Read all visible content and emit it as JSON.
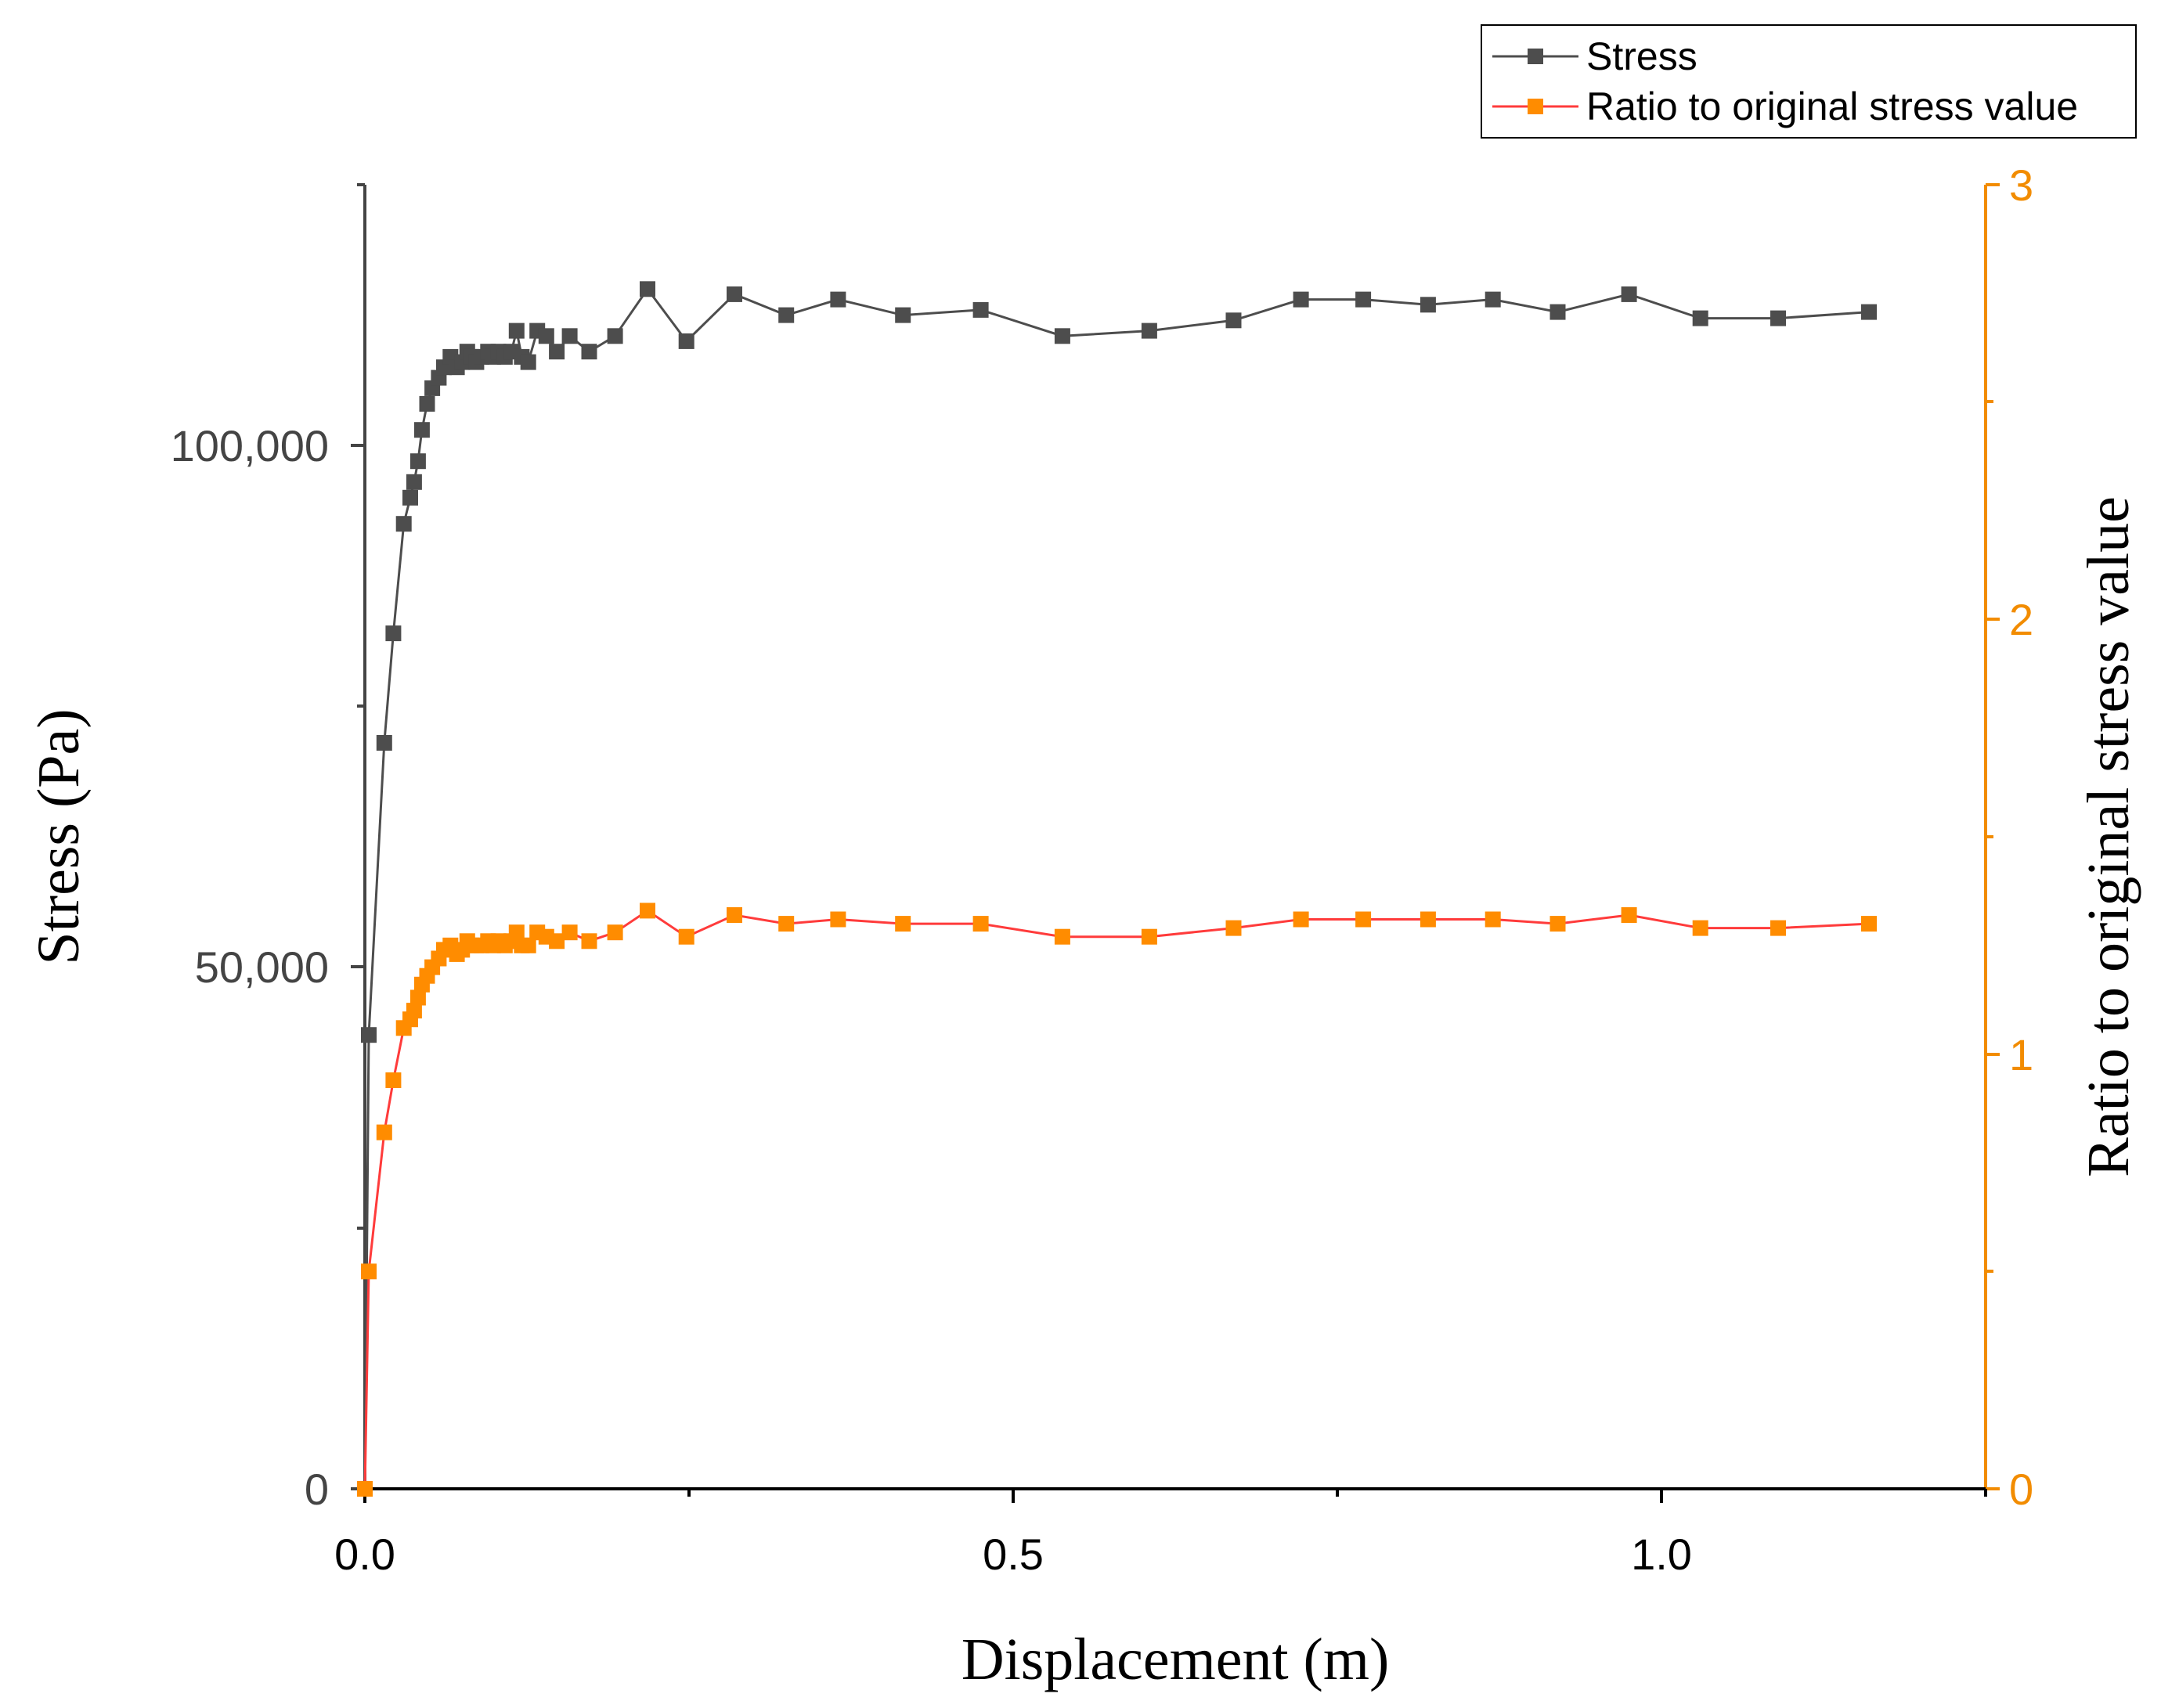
{
  "chart_data": {
    "type": "line",
    "title": "",
    "xlabel": "Displacement (m)",
    "ylabel": "Stress (Pa)",
    "y2label": "Ratio to original stress value",
    "xlim": [
      0,
      1.25
    ],
    "ylim": [
      0,
      125000
    ],
    "y2lim": [
      0,
      3
    ],
    "x_ticks": [
      "0.0",
      "0.5",
      "1.0"
    ],
    "y_ticks": [
      "0",
      "50,000",
      "100,000"
    ],
    "y2_ticks": [
      "0",
      "1",
      "2",
      "3"
    ],
    "legend": {
      "position": "top-right",
      "entries": [
        "Stress",
        "Ratio to original stress value"
      ]
    },
    "colors": {
      "stress": "#4d4d4d",
      "ratio_line": "#ff3b3b",
      "ratio_marker": "#ff8c00",
      "right_axis": "#f28c00"
    },
    "x": [
      0.0,
      0.003,
      0.015,
      0.022,
      0.03,
      0.035,
      0.038,
      0.041,
      0.044,
      0.048,
      0.052,
      0.057,
      0.061,
      0.066,
      0.071,
      0.075,
      0.079,
      0.082,
      0.086,
      0.09,
      0.095,
      0.099,
      0.103,
      0.108,
      0.113,
      0.117,
      0.121,
      0.126,
      0.133,
      0.14,
      0.148,
      0.158,
      0.173,
      0.193,
      0.218,
      0.248,
      0.285,
      0.325,
      0.365,
      0.415,
      0.475,
      0.538,
      0.605,
      0.67,
      0.722,
      0.77,
      0.82,
      0.87,
      0.92,
      0.975,
      1.03,
      1.09,
      1.16
    ],
    "series": [
      {
        "name": "Stress",
        "axis": "left",
        "values": [
          0,
          43500,
          71500,
          82000,
          92500,
          95000,
          96500,
          98500,
          101500,
          104000,
          105500,
          106500,
          107500,
          108500,
          107500,
          108000,
          109000,
          108500,
          108000,
          108500,
          109000,
          108500,
          109000,
          108500,
          109000,
          111000,
          108500,
          108000,
          111000,
          110500,
          109000,
          110500,
          109000,
          110500,
          115000,
          110000,
          114500,
          112500,
          114000,
          112500,
          113000,
          110500,
          111000,
          112000,
          114000,
          114000,
          113500,
          114000,
          112800,
          114500,
          112200,
          112200,
          112800
        ]
      },
      {
        "name": "Ratio to original stress value",
        "axis": "right",
        "values": [
          0.0,
          0.5,
          0.82,
          0.94,
          1.06,
          1.08,
          1.1,
          1.13,
          1.16,
          1.18,
          1.2,
          1.22,
          1.24,
          1.25,
          1.23,
          1.24,
          1.26,
          1.25,
          1.25,
          1.25,
          1.26,
          1.25,
          1.26,
          1.25,
          1.26,
          1.28,
          1.25,
          1.25,
          1.28,
          1.27,
          1.26,
          1.28,
          1.26,
          1.28,
          1.33,
          1.27,
          1.32,
          1.3,
          1.31,
          1.3,
          1.3,
          1.27,
          1.27,
          1.29,
          1.31,
          1.31,
          1.31,
          1.31,
          1.3,
          1.32,
          1.29,
          1.29,
          1.3
        ]
      }
    ]
  }
}
